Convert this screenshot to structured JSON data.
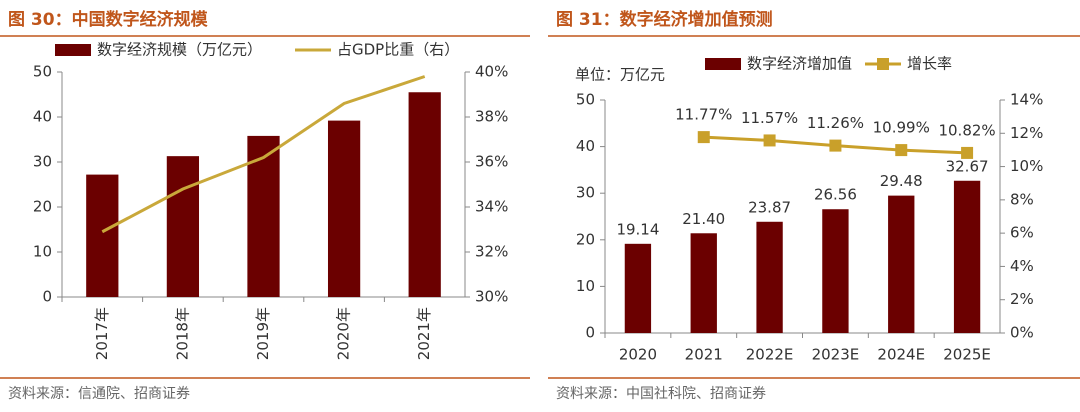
{
  "chart_data": [
    {
      "type": "bar",
      "title": "图 30：中国数字经济规模",
      "categories": [
        "2017年",
        "2018年",
        "2019年",
        "2020年",
        "2021年"
      ],
      "series": [
        {
          "name": "数字经济规模（万亿元）",
          "color": "#6b0000",
          "type": "bar",
          "values": [
            27.2,
            31.3,
            35.8,
            39.2,
            45.5
          ]
        },
        {
          "name": "占GDP比重（右）",
          "color": "#c9a83a",
          "type": "line",
          "axis": "y2",
          "values": [
            32.9,
            34.8,
            36.2,
            38.6,
            39.8
          ]
        }
      ],
      "ylim": [
        0,
        50
      ],
      "yticks": [
        0,
        10,
        20,
        30,
        40,
        50
      ],
      "y2lim": [
        30,
        40
      ],
      "y2ticks": [
        {
          "value": 30,
          "label": "30%"
        },
        {
          "value": 32,
          "label": "32%"
        },
        {
          "value": 34,
          "label": "34%"
        },
        {
          "value": 36,
          "label": "36%"
        },
        {
          "value": 38,
          "label": "38%"
        },
        {
          "value": 40,
          "label": "40%"
        }
      ],
      "source": "资料来源：信通院、招商证券"
    },
    {
      "type": "bar",
      "title": "图 31：数字经济增加值预测",
      "unit": "单位：万亿元",
      "categories": [
        "2020",
        "2021",
        "2022E",
        "2023E",
        "2024E",
        "2025E"
      ],
      "series": [
        {
          "name": "数字经济增加值",
          "color": "#6b0000",
          "type": "bar",
          "values": [
            19.14,
            21.4,
            23.87,
            26.56,
            29.48,
            32.67
          ],
          "value_labels": [
            "19.14",
            "21.40",
            "23.87",
            "26.56",
            "29.48",
            "32.67"
          ]
        },
        {
          "name": "增长率",
          "color": "#c9a02a",
          "type": "line",
          "axis": "y2",
          "values": [
            null,
            11.77,
            11.57,
            11.26,
            10.99,
            10.82
          ],
          "value_labels": [
            null,
            "11.77%",
            "11.57%",
            "11.26%",
            "10.99%",
            "10.82%"
          ]
        }
      ],
      "ylim": [
        0,
        50
      ],
      "yticks": [
        0,
        10,
        20,
        30,
        40,
        50
      ],
      "y2lim": [
        0,
        14
      ],
      "y2ticks": [
        {
          "value": 0,
          "label": "0%"
        },
        {
          "value": 2,
          "label": "2%"
        },
        {
          "value": 4,
          "label": "4%"
        },
        {
          "value": 6,
          "label": "6%"
        },
        {
          "value": 8,
          "label": "8%"
        },
        {
          "value": 10,
          "label": "10%"
        },
        {
          "value": 12,
          "label": "12%"
        },
        {
          "value": 14,
          "label": "14%"
        }
      ],
      "source": "资料来源：中国社科院、招商证券"
    }
  ]
}
